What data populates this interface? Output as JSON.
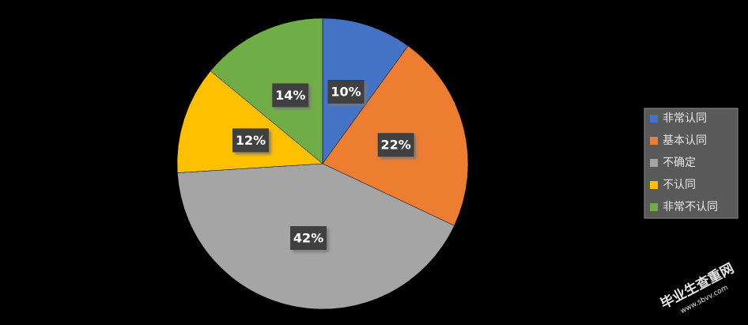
{
  "chart_data": {
    "type": "pie",
    "categories": [
      "非常认同",
      "基本认同",
      "不确定",
      "不认同",
      "非常不认同"
    ],
    "values": [
      10,
      22,
      42,
      12,
      14
    ],
    "value_labels": [
      "10%",
      "22%",
      "42%",
      "12%",
      "14%"
    ],
    "colors": [
      "#4472c4",
      "#ed7d31",
      "#a5a5a5",
      "#ffc000",
      "#70ad47"
    ],
    "legend": "right",
    "watermark": [
      "毕业生查重网",
      "www.sbvv.com"
    ]
  }
}
